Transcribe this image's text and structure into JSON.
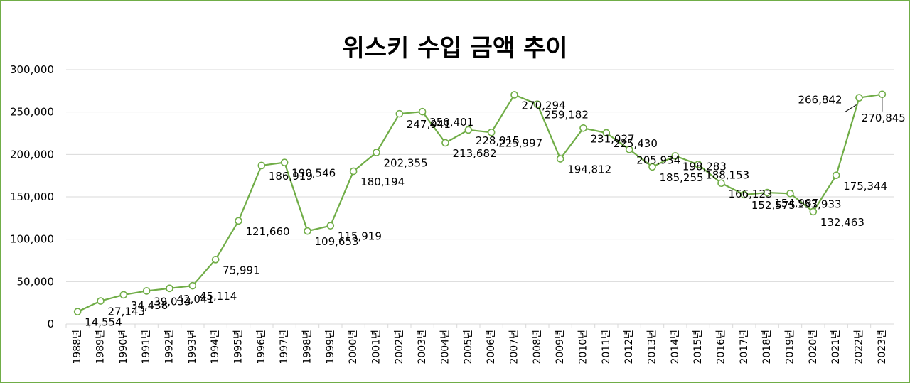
{
  "chart_data": {
    "type": "line",
    "title": "위스키 수입 금액 추이",
    "xlabel": "",
    "ylabel": "",
    "ylim": [
      0,
      300000
    ],
    "yticks": [
      0,
      50000,
      100000,
      150000,
      200000,
      250000,
      300000
    ],
    "ytick_labels": [
      "0",
      "50,000",
      "100,000",
      "150,000",
      "200,000",
      "250,000",
      "300,000"
    ],
    "grid": true,
    "legend": "none",
    "line_color": "#70ad47",
    "categories": [
      "1988년",
      "1989년",
      "1990년",
      "1991년",
      "1992년",
      "1993년",
      "1994년",
      "1995년",
      "1996년",
      "1997년",
      "1998년",
      "1999년",
      "2000년",
      "2001년",
      "2002년",
      "2003년",
      "2004년",
      "2005년",
      "2006년",
      "2007년",
      "2008년",
      "2009년",
      "2010년",
      "2011년",
      "2012년",
      "2013년",
      "2014년",
      "2015년",
      "2016년",
      "2017년",
      "2018년",
      "2019년",
      "2020년",
      "2021년",
      "2022년",
      "2023년"
    ],
    "values": [
      14554,
      27143,
      34438,
      39033,
      42041,
      45114,
      75991,
      121660,
      186919,
      190546,
      109653,
      115919,
      180194,
      202355,
      247941,
      250401,
      213682,
      228915,
      225997,
      270294,
      259182,
      194812,
      231027,
      225430,
      205934,
      185255,
      198283,
      188153,
      166123,
      152575,
      154987,
      153933,
      132463,
      175344,
      266842,
      270845
    ],
    "labels": [
      "14,554",
      "27,143",
      "34,438",
      "39,033",
      "42,041",
      "45,114",
      "75,991",
      "121,660",
      "186,919",
      "190,546",
      "109,653",
      "115,919",
      "180,194",
      "202,355",
      "247,941",
      "250,401",
      "213,682",
      "228,915",
      "225,997",
      "270,294",
      "259,182",
      "194,812",
      "231,027",
      "225,430",
      "205,934",
      "185,255",
      "198,283",
      "188,153",
      "166,123",
      "152,575",
      "154,987",
      "153,933",
      "132,463",
      "175,344",
      "266,842",
      "270,845"
    ]
  }
}
